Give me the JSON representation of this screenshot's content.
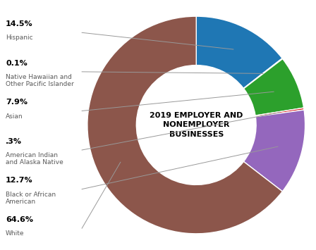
{
  "chart_data": {
    "type": "pie",
    "title": "2019 EMPLOYER AND\nNONEMPLOYER\nBUSINESSES",
    "categories": [
      "Hispanic",
      "Native Hawaiian and\nOther Pacific Islander",
      "Asian",
      "American Indian\nand Alaska Native",
      "Black or African\nAmerican",
      "White"
    ],
    "values": [
      14.5,
      0.1,
      7.9,
      0.3,
      12.7,
      64.6
    ],
    "value_labels": [
      "14.5%",
      "0.1%",
      "7.9%",
      ".3%",
      "12.7%",
      "64.6%"
    ]
  }
}
